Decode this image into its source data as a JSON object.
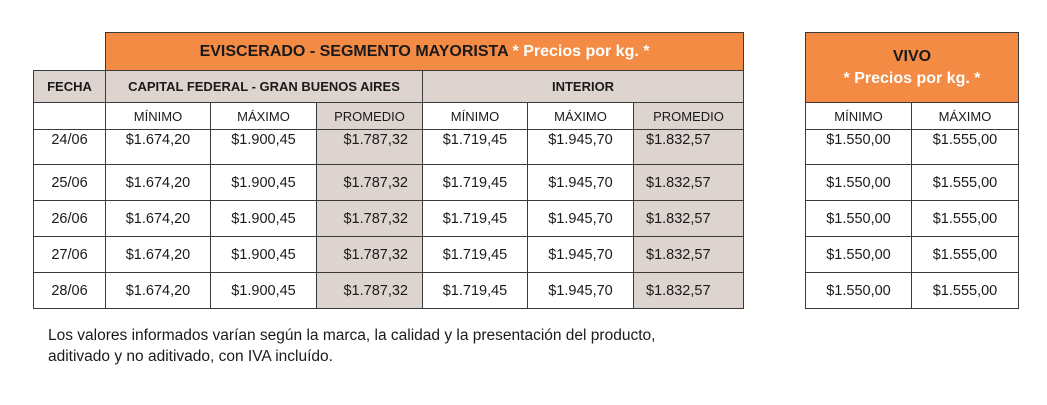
{
  "main": {
    "title": "EVISCERADO - SEGMENTO MAYORISTA",
    "title_note": "* Precios por kg. *",
    "fecha_label": "FECHA",
    "region_capital": "CAPITAL FEDERAL - GRAN BUENOS AIRES",
    "region_interior": "INTERIOR",
    "col_min": "MÍNIMO",
    "col_max": "MÁXIMO",
    "col_prom": "PROMEDIO",
    "rows": [
      {
        "fecha": "24/06",
        "cap_min": "$1.674,20",
        "cap_max": "$1.900,45",
        "cap_prom": "$1.787,32",
        "int_min": "$1.719,45",
        "int_max": "$1.945,70",
        "int_prom": "$1.832,57"
      },
      {
        "fecha": "25/06",
        "cap_min": "$1.674,20",
        "cap_max": "$1.900,45",
        "cap_prom": "$1.787,32",
        "int_min": "$1.719,45",
        "int_max": "$1.945,70",
        "int_prom": "$1.832,57"
      },
      {
        "fecha": "26/06",
        "cap_min": "$1.674,20",
        "cap_max": "$1.900,45",
        "cap_prom": "$1.787,32",
        "int_min": "$1.719,45",
        "int_max": "$1.945,70",
        "int_prom": "$1.832,57"
      },
      {
        "fecha": "27/06",
        "cap_min": "$1.674,20",
        "cap_max": "$1.900,45",
        "cap_prom": "$1.787,32",
        "int_min": "$1.719,45",
        "int_max": "$1.945,70",
        "int_prom": "$1.832,57"
      },
      {
        "fecha": "28/06",
        "cap_min": "$1.674,20",
        "cap_max": "$1.900,45",
        "cap_prom": "$1.787,32",
        "int_min": "$1.719,45",
        "int_max": "$1.945,70",
        "int_prom": "$1.832,57"
      }
    ]
  },
  "vivo": {
    "title": "VIVO",
    "title_note": "* Precios por kg. *",
    "col_min": "MÍNIMO",
    "col_max": "MÁXIMO",
    "rows": [
      {
        "min": "$1.550,00",
        "max": "$1.555,00"
      },
      {
        "min": "$1.550,00",
        "max": "$1.555,00"
      },
      {
        "min": "$1.550,00",
        "max": "$1.555,00"
      },
      {
        "min": "$1.550,00",
        "max": "$1.555,00"
      },
      {
        "min": "$1.550,00",
        "max": "$1.555,00"
      }
    ]
  },
  "footnote": {
    "line1": "Los valores informados varían según la marca, la calidad y la presentación del producto,",
    "line2": "aditivado y no aditivado, con IVA incluído."
  },
  "colors": {
    "header_orange": "#f48b44",
    "shade_grey": "#ddd3cf",
    "border": "#3a3a3a"
  }
}
